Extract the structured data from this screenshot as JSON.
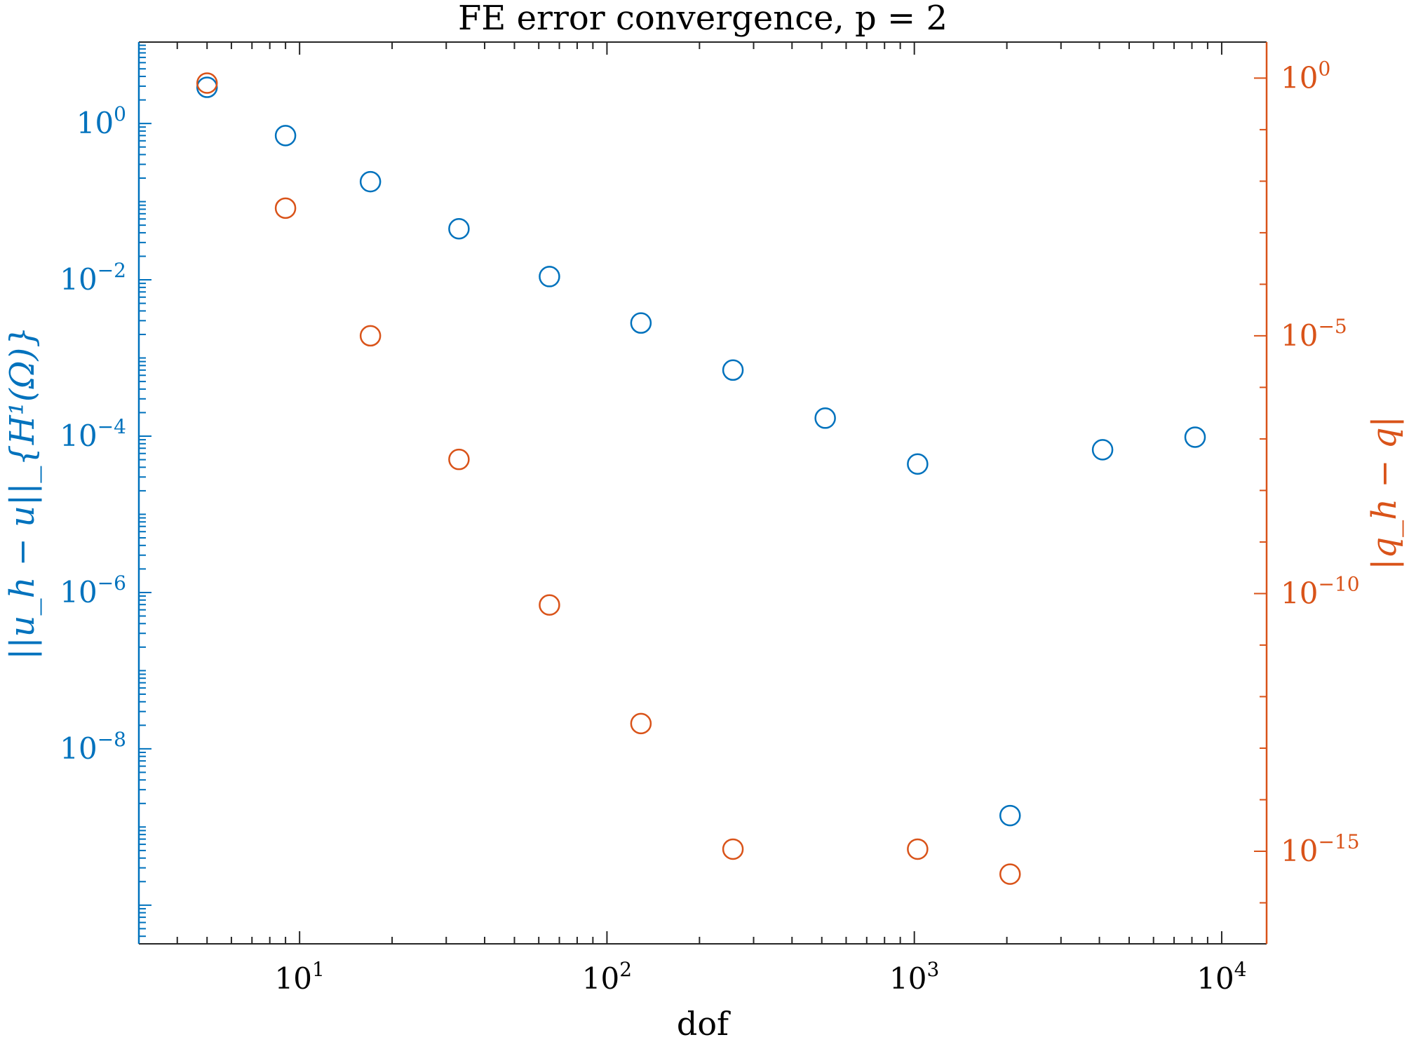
{
  "colors": {
    "left_axis": "#0072BD",
    "right_axis": "#D95319",
    "frame": "#262626"
  },
  "chart_data": {
    "type": "scatter",
    "title": "FE error convergence, p = 2",
    "xlabel": "dof",
    "ylabel_left": "||u_h − u||_{H¹(Ω)}",
    "ylabel_right": "|q_h − q|",
    "xscale": "log",
    "yscale_left": "log",
    "yscale_right": "log",
    "xlim": [
      3,
      14000
    ],
    "ylim_left": [
      3.2e-11,
      11
    ],
    "ylim_right": [
      1.6e-17,
      5
    ],
    "x_ticks": [
      {
        "base": "10",
        "exp": "1"
      },
      {
        "base": "10",
        "exp": "2"
      },
      {
        "base": "10",
        "exp": "3"
      },
      {
        "base": "10",
        "exp": "4"
      }
    ],
    "y_left_ticks": [
      {
        "base": "10",
        "exp": "0"
      },
      {
        "base": "10",
        "exp": "−2"
      },
      {
        "base": "10",
        "exp": "−4"
      },
      {
        "base": "10",
        "exp": "−6"
      },
      {
        "base": "10",
        "exp": "−8"
      }
    ],
    "y_right_ticks": [
      {
        "base": "10",
        "exp": "0"
      },
      {
        "base": "10",
        "exp": "−5"
      },
      {
        "base": "10",
        "exp": "−10"
      },
      {
        "base": "10",
        "exp": "−15"
      }
    ],
    "grid": false,
    "marker": "open circle",
    "series": [
      {
        "axis": "left",
        "color": "#0072BD",
        "x": [
          5,
          9,
          17,
          33,
          65,
          129,
          257,
          513,
          1025,
          2049,
          4097,
          8193
        ],
        "y": [
          2.9,
          0.7,
          0.18,
          0.045,
          0.011,
          0.0028,
          0.0007,
          0.00017,
          4.4e-05,
          1.4e-09,
          6.7e-05,
          9.7e-05
        ]
      },
      {
        "axis": "right",
        "color": "#D95319",
        "x": [
          5,
          9,
          17,
          33,
          65,
          129,
          257,
          1025,
          2049
        ],
        "y": [
          0.8,
          0.003,
          1e-05,
          4e-08,
          6e-11,
          3e-13,
          1.1e-15,
          1.1e-15,
          3.6e-16
        ]
      }
    ]
  }
}
